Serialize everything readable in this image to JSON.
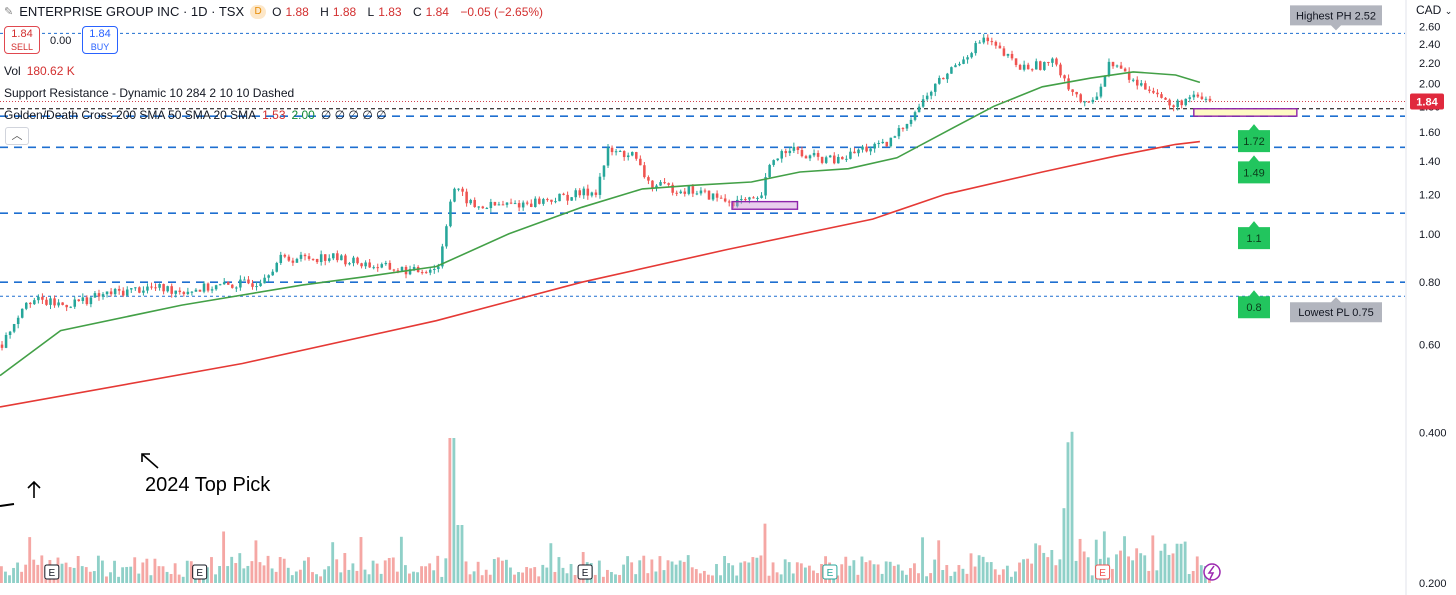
{
  "header": {
    "symbol_title": "ENTERPRISE GROUP INC · 1D · TSX",
    "delayed_badge": "D",
    "ohlc": {
      "open_label": "O",
      "open": "1.88",
      "high_label": "H",
      "high": "1.88",
      "low_label": "L",
      "low": "1.83",
      "close_label": "C",
      "close": "1.84",
      "change": "−0.05 (−2.65%)"
    },
    "currency": "CAD",
    "currency_icon": "chevron-down-icon"
  },
  "trade": {
    "sell_price": "1.84",
    "sell_label": "SELL",
    "spread": "0.00",
    "buy_price": "1.84",
    "buy_label": "BUY"
  },
  "indicators": {
    "vol_label": "Vol",
    "vol_value": "180.62 K",
    "sr_label": "Support Resistance - Dynamic 10 284 2 10 10 Dashed",
    "gdc_label": "Golden/Death Cross 200 SMA 50 SMA 20 SMA",
    "gdc_val1": "1.53",
    "gdc_val2": "2.00",
    "gdc_empties": "∅ ∅ ∅ ∅ ∅",
    "collapse_icon": "chevron-up-icon"
  },
  "annotation_text": "2024 Top Pick",
  "colors": {
    "up": "#26a69a",
    "down": "#ef5350",
    "sma_green": "#43a047",
    "sma_red": "#e53935",
    "level_line": "#1e6fd0",
    "label_green": "#22c55e",
    "label_gray": "#b2b5be",
    "price_badge": "#e0293d",
    "volume_up": "#8fd0c8",
    "volume_down": "#f5a7a4"
  },
  "chart_data": {
    "type": "candlestick",
    "y_scale": "log",
    "ylim": [
      0.19,
      2.68
    ],
    "y_ticks": [
      "2.60",
      "2.40",
      "2.20",
      "2.00",
      "1.80",
      "1.60",
      "1.40",
      "1.20",
      "1.00",
      "0.80",
      "0.60",
      "0.400",
      "0.200"
    ],
    "current_price": "1.84",
    "last_close": 1.84,
    "highest_label": "Highest PH 2.52",
    "highest_value": 2.52,
    "lowest_label": "Lowest PL 0.75",
    "lowest_value": 0.75,
    "support_levels": [
      {
        "label": "1.72",
        "value": 1.72
      },
      {
        "label": "1.49",
        "value": 1.49
      },
      {
        "label": "1.1",
        "value": 1.1
      },
      {
        "label": "0.8",
        "value": 0.8
      }
    ],
    "ref_line": 1.78,
    "highlight_boxes": [
      {
        "color": "purple",
        "x_from_bar": 0.604,
        "x_to_bar": 0.658,
        "y_low": 1.12,
        "y_high": 1.16
      },
      {
        "color": "yellow",
        "x_from_bar": 0.985,
        "x_to_bar": 1.07,
        "y_low": 1.72,
        "y_high": 1.78
      }
    ],
    "price_path": [
      [
        0,
        0.6
      ],
      [
        0.02,
        0.74
      ],
      [
        0.05,
        0.72
      ],
      [
        0.09,
        0.76
      ],
      [
        0.12,
        0.78
      ],
      [
        0.15,
        0.77
      ],
      [
        0.19,
        0.79
      ],
      [
        0.21,
        0.8
      ],
      [
        0.23,
        0.89
      ],
      [
        0.27,
        0.9
      ],
      [
        0.31,
        0.86
      ],
      [
        0.34,
        0.84
      ],
      [
        0.36,
        0.86
      ],
      [
        0.372,
        1.24
      ],
      [
        0.39,
        1.13
      ],
      [
        0.43,
        1.15
      ],
      [
        0.46,
        1.18
      ],
      [
        0.49,
        1.22
      ],
      [
        0.5,
        1.46
      ],
      [
        0.52,
        1.44
      ],
      [
        0.535,
        1.25
      ],
      [
        0.57,
        1.22
      ],
      [
        0.6,
        1.16
      ],
      [
        0.625,
        1.16
      ],
      [
        0.635,
        1.4
      ],
      [
        0.65,
        1.5
      ],
      [
        0.66,
        1.43
      ],
      [
        0.69,
        1.4
      ],
      [
        0.71,
        1.48
      ],
      [
        0.73,
        1.5
      ],
      [
        0.75,
        1.72
      ],
      [
        0.77,
        1.98
      ],
      [
        0.79,
        2.22
      ],
      [
        0.81,
        2.46
      ],
      [
        0.825,
        2.3
      ],
      [
        0.84,
        2.15
      ],
      [
        0.87,
        2.2
      ],
      [
        0.88,
        1.98
      ],
      [
        0.895,
        1.78
      ],
      [
        0.905,
        1.95
      ],
      [
        0.915,
        2.22
      ],
      [
        0.935,
        2.0
      ],
      [
        0.95,
        1.95
      ],
      [
        0.965,
        1.78
      ],
      [
        0.975,
        1.86
      ],
      [
        0.99,
        1.86
      ],
      [
        1.0,
        1.84
      ]
    ],
    "sma_50": [
      [
        0,
        0.52
      ],
      [
        0.05,
        0.64
      ],
      [
        0.15,
        0.72
      ],
      [
        0.25,
        0.79
      ],
      [
        0.3,
        0.82
      ],
      [
        0.36,
        0.86
      ],
      [
        0.42,
        1.0
      ],
      [
        0.48,
        1.13
      ],
      [
        0.53,
        1.23
      ],
      [
        0.57,
        1.25
      ],
      [
        0.62,
        1.27
      ],
      [
        0.66,
        1.33
      ],
      [
        0.7,
        1.35
      ],
      [
        0.74,
        1.42
      ],
      [
        0.78,
        1.6
      ],
      [
        0.82,
        1.8
      ],
      [
        0.86,
        1.97
      ],
      [
        0.9,
        2.05
      ],
      [
        0.935,
        2.11
      ],
      [
        0.97,
        2.08
      ],
      [
        0.99,
        2.01
      ]
    ],
    "sma_200": [
      [
        0,
        0.45
      ],
      [
        0.2,
        0.55
      ],
      [
        0.36,
        0.67
      ],
      [
        0.48,
        0.8
      ],
      [
        0.6,
        0.93
      ],
      [
        0.72,
        1.07
      ],
      [
        0.78,
        1.2
      ],
      [
        0.86,
        1.33
      ],
      [
        0.92,
        1.43
      ],
      [
        0.97,
        1.51
      ],
      [
        0.99,
        1.53
      ]
    ],
    "events": [
      {
        "label": "E",
        "bar_pos": 0.018
      },
      {
        "label": "E",
        "bar_pos": 0.14
      },
      {
        "label": "E",
        "bar_pos": 0.458
      },
      {
        "label": "E",
        "bar_pos": 0.66
      },
      {
        "label": "E",
        "bar_pos": 0.885
      }
    ],
    "lightning_icon": "lightning-icon"
  }
}
